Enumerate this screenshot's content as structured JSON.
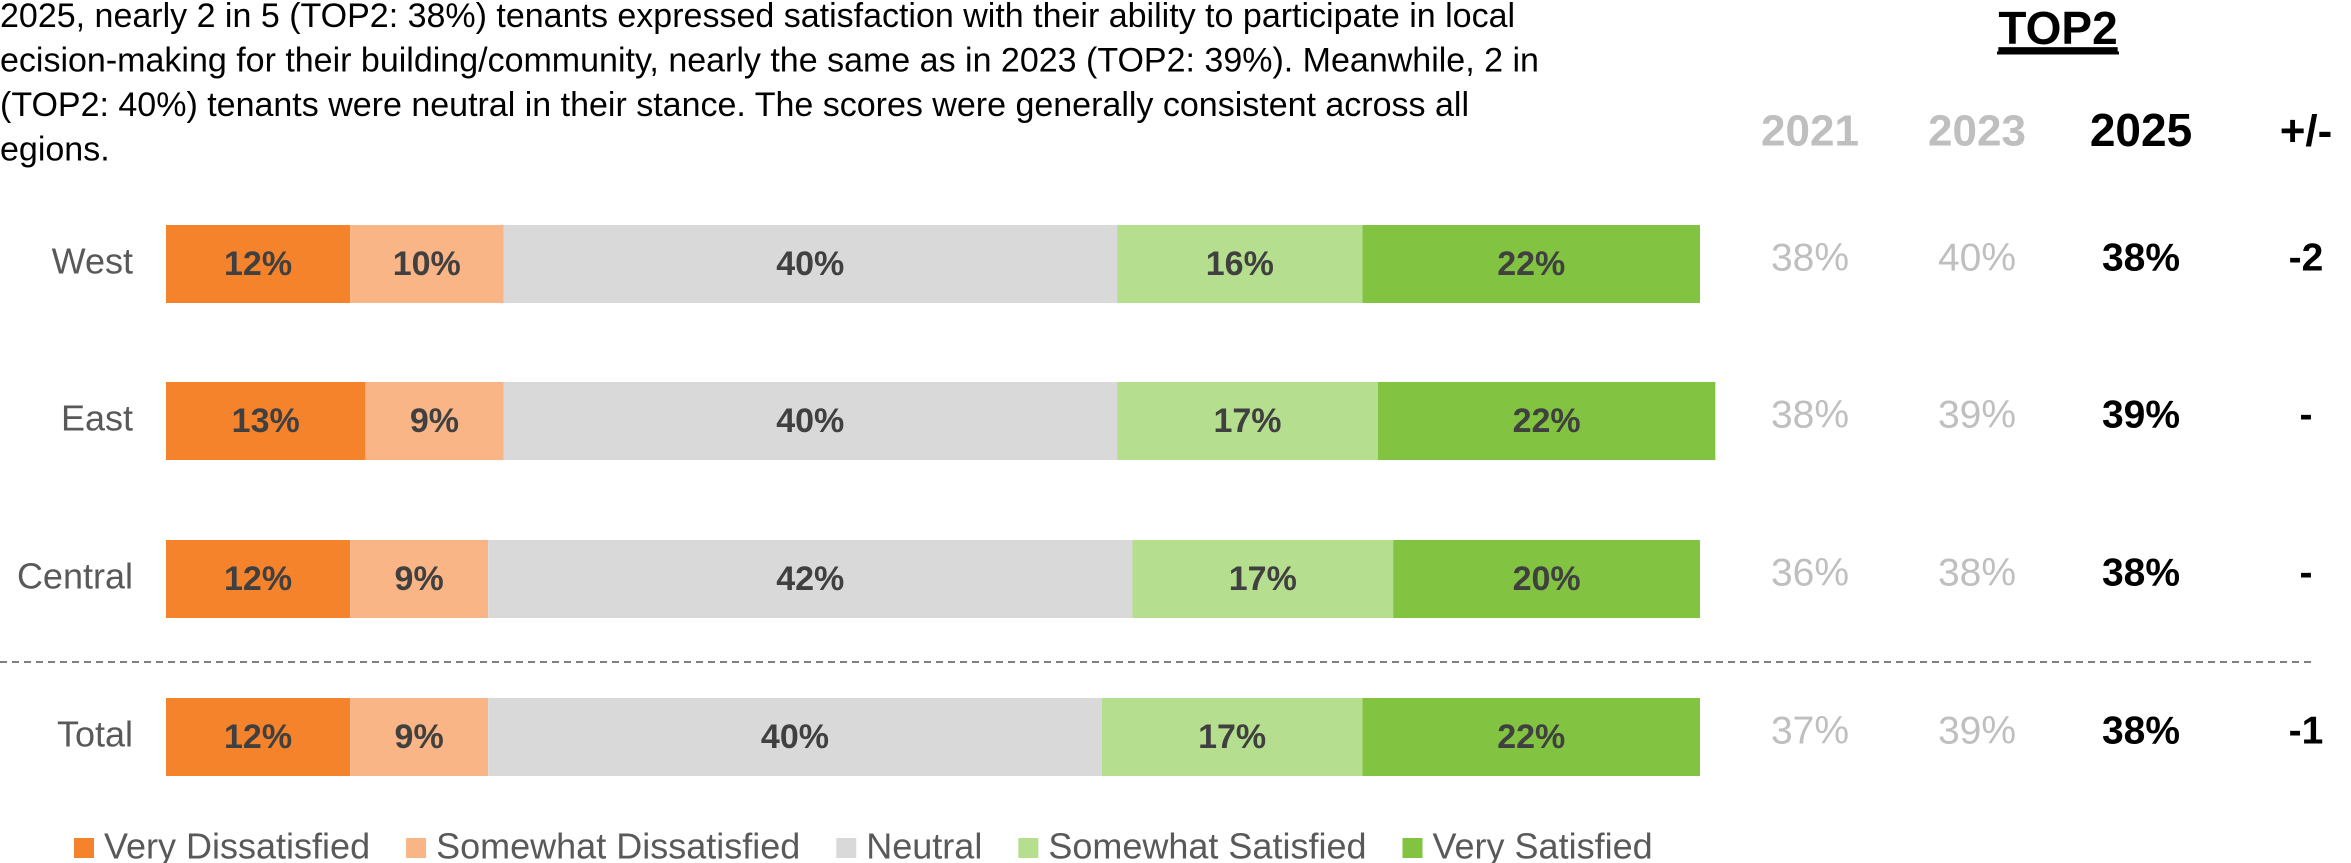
{
  "chart_data": {
    "type": "bar",
    "orientation": "horizontal",
    "stacked": true,
    "text_lines": [
      "2025, nearly 2 in 5 (TOP2: 38%) tenants expressed satisfaction with their ability to participate in local",
      "ecision-making for their building/community, nearly the same as in 2023 (TOP2: 39%). Meanwhile, 2 in",
      "(TOP2: 40%) tenants were neutral in their stance. The scores were generally consistent across all",
      "egions."
    ],
    "categories": [
      "West",
      "East",
      "Central",
      "Total"
    ],
    "xlim": [
      0,
      100
    ],
    "series": [
      {
        "name": "Very Dissatisfied",
        "color": "#f5832c",
        "values": [
          12,
          13,
          12,
          12
        ],
        "value_labels": [
          "12%",
          "13%",
          "12%",
          "12%"
        ]
      },
      {
        "name": "Somewhat Dissatisfied",
        "color": "#f9b585",
        "values": [
          10,
          9,
          9,
          9
        ],
        "value_labels": [
          "10%",
          "9%",
          "9%",
          "9%"
        ]
      },
      {
        "name": "Neutral",
        "color": "#d9d9d9",
        "values": [
          40,
          40,
          42,
          40
        ],
        "value_labels": [
          "40%",
          "40%",
          "42%",
          "40%"
        ]
      },
      {
        "name": "Somewhat Satisfied",
        "color": "#b6de8f",
        "values": [
          16,
          17,
          17,
          17
        ],
        "value_labels": [
          "16%",
          "17%",
          "17%",
          "17%"
        ]
      },
      {
        "name": "Very Satisfied",
        "color": "#82c341",
        "values": [
          22,
          22,
          20,
          22
        ],
        "value_labels": [
          "22%",
          "22%",
          "20%",
          "22%"
        ]
      }
    ],
    "table": {
      "title": "TOP2",
      "columns": [
        "2021",
        "2023",
        "2025",
        "+/-"
      ],
      "rows": [
        [
          "38%",
          "40%",
          "38%",
          "-2"
        ],
        [
          "38%",
          "39%",
          "39%",
          "-"
        ],
        [
          "36%",
          "38%",
          "38%",
          "-"
        ],
        [
          "37%",
          "39%",
          "38%",
          "-1"
        ]
      ]
    }
  }
}
